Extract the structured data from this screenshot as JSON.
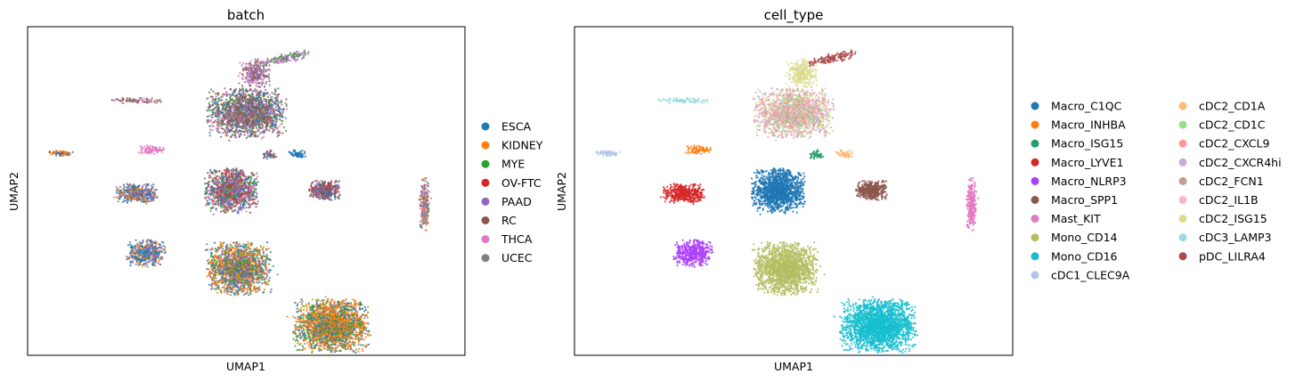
{
  "chart_data": [
    {
      "type": "scatter",
      "title": "batch",
      "xlabel": "UMAP1",
      "ylabel": "UMAP2",
      "grid": false,
      "ticks": "none",
      "legend_placement": "right, outside",
      "legend": [
        {
          "label": "ESCA",
          "color": "#1f77b4"
        },
        {
          "label": "KIDNEY",
          "color": "#ff7f0e"
        },
        {
          "label": "MYE",
          "color": "#2ca02c"
        },
        {
          "label": "OV-FTC",
          "color": "#d62728"
        },
        {
          "label": "PAAD",
          "color": "#9467bd"
        },
        {
          "label": "RC",
          "color": "#8c564b"
        },
        {
          "label": "THCA",
          "color": "#e377c2"
        },
        {
          "label": "UCEC",
          "color": "#7f7f7f"
        }
      ]
    },
    {
      "type": "scatter",
      "title": "cell_type",
      "xlabel": "UMAP1",
      "ylabel": "UMAP2",
      "grid": false,
      "ticks": "none",
      "legend_placement": "right, outside, two columns",
      "legend": [
        {
          "label": "Macro_C1QC",
          "color": "#1f77b4"
        },
        {
          "label": "Macro_INHBA",
          "color": "#ff7f0e"
        },
        {
          "label": "Macro_ISG15",
          "color": "#279e68"
        },
        {
          "label": "Macro_LYVE1",
          "color": "#d62728"
        },
        {
          "label": "Macro_NLRP3",
          "color": "#aa40fc"
        },
        {
          "label": "Macro_SPP1",
          "color": "#8c564b"
        },
        {
          "label": "Mast_KIT",
          "color": "#e377c2"
        },
        {
          "label": "Mono_CD14",
          "color": "#b5bd61"
        },
        {
          "label": "Mono_CD16",
          "color": "#17becf"
        },
        {
          "label": "cDC1_CLEC9A",
          "color": "#aec7e8"
        },
        {
          "label": "cDC2_CD1A",
          "color": "#ffbb78"
        },
        {
          "label": "cDC2_CD1C",
          "color": "#98df8a"
        },
        {
          "label": "cDC2_CXCL9",
          "color": "#ff9896"
        },
        {
          "label": "cDC2_CXCR4hi",
          "color": "#c5b0d5"
        },
        {
          "label": "cDC2_FCN1",
          "color": "#c49c94"
        },
        {
          "label": "cDC2_IL1B",
          "color": "#f7b6d2"
        },
        {
          "label": "cDC2_ISG15",
          "color": "#dbdb8d"
        },
        {
          "label": "cDC3_LAMP3",
          "color": "#9edae5"
        },
        {
          "label": "pDC_LILRA4",
          "color": "#ad494a"
        }
      ]
    }
  ]
}
